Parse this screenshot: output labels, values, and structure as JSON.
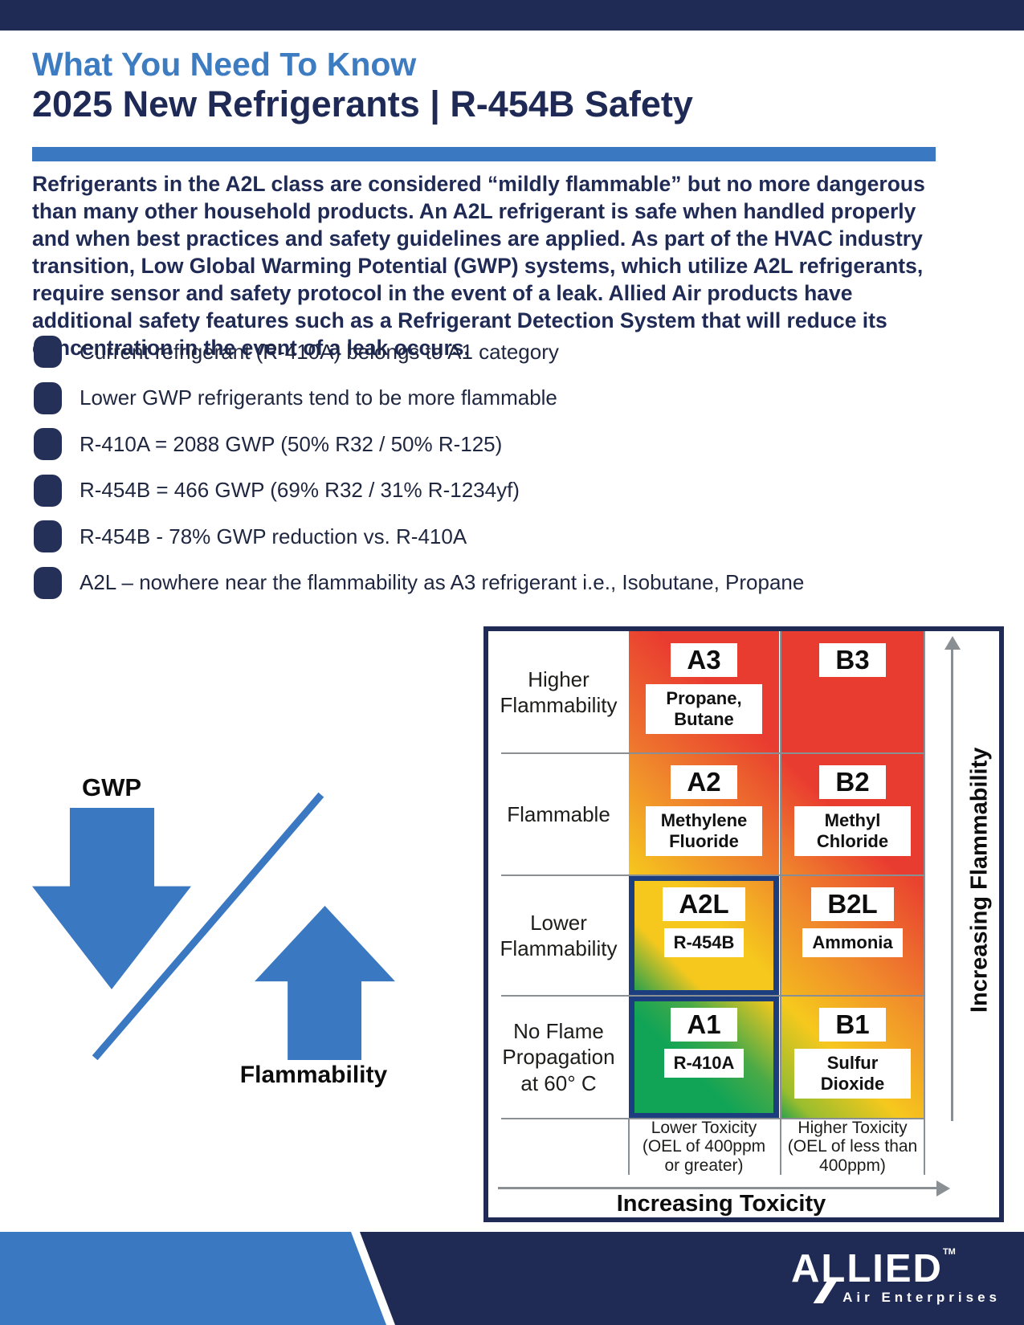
{
  "page": {
    "title_line1": "What You Need To Know",
    "title_line2": "2025 New Refrigerants | R-454B Safety"
  },
  "intro": {
    "text": "Refrigerants in the A2L class are considered “mildly flammable” but no more dangerous than many other household products. An A2L refrigerant is safe when handled properly and when best practices and safety guidelines are applied. As part of the HVAC industry transition, Low Global Warming Potential (GWP) systems, which utilize A2L refrigerants, require sensor and safety protocol in the event of a leak. Allied Air products have additional safety features such as a Refrigerant Detection System that will reduce its concentration in the event of a leak occurs."
  },
  "bullets": [
    "Current refrigerant (R-410A) belongs to A1 category",
    "Lower GWP refrigerants tend to be more flammable",
    "R-410A = 2088 GWP (50% R32 / 50% R-125)",
    "R-454B = 466 GWP (69% R32 / 31% R-1234yf)",
    "R-454B - 78% GWP reduction vs. R-410A",
    "A2L – nowhere near the flammability as A3 refrigerant i.e., Isobutane, Propane"
  ],
  "relationship": {
    "down_arrow_label": "GWP",
    "up_arrow_label": "Flammability"
  },
  "chart_data": {
    "type": "heatmap",
    "x_axis_label": "Increasing Toxicity",
    "y_axis_label": "Increasing Flammability",
    "row_labels": [
      "Higher Flammability",
      "Flammable",
      "Lower Flammability",
      "No Flame Propagation at 60° C"
    ],
    "column_labels": [
      "Lower Toxicity (OEL of 400ppm or greater)",
      "Higher Toxicity (OEL of less than 400ppm)"
    ],
    "cells": [
      {
        "code": "A3",
        "name": "Propane, Butane",
        "row": "Higher Flammability",
        "column": "Lower Toxicity",
        "highlighted": false
      },
      {
        "code": "B3",
        "name": "",
        "row": "Higher Flammability",
        "column": "Higher Toxicity",
        "highlighted": false
      },
      {
        "code": "A2",
        "name": "Methylene Fluoride",
        "row": "Flammable",
        "column": "Lower Toxicity",
        "highlighted": false
      },
      {
        "code": "B2",
        "name": "Methyl Chloride",
        "row": "Flammable",
        "column": "Higher Toxicity",
        "highlighted": false
      },
      {
        "code": "A2L",
        "name": "R-454B",
        "row": "Lower Flammability",
        "column": "Lower Toxicity",
        "highlighted": true
      },
      {
        "code": "B2L",
        "name": "Ammonia",
        "row": "Lower Flammability",
        "column": "Higher Toxicity",
        "highlighted": false
      },
      {
        "code": "A1",
        "name": "R-410A",
        "row": "No Flame Propagation at 60° C",
        "column": "Lower Toxicity",
        "highlighted": true
      },
      {
        "code": "B1",
        "name": "Sulfur Dioxide",
        "row": "No Flame Propagation at 60° C",
        "column": "Higher Toxicity",
        "highlighted": false
      }
    ]
  },
  "footer": {
    "brand": "ALLIED",
    "trademark": "TM",
    "tagline": "Air Enterprises"
  },
  "colors": {
    "navy": "#1f2a55",
    "accent_blue": "#3a78c2",
    "title_blue": "#3e7cc1",
    "red": "#e93c30",
    "orange": "#f08a2c",
    "yellow": "#f6c81d",
    "green": "#12a456",
    "highlight_border": "#1c3e7e"
  }
}
